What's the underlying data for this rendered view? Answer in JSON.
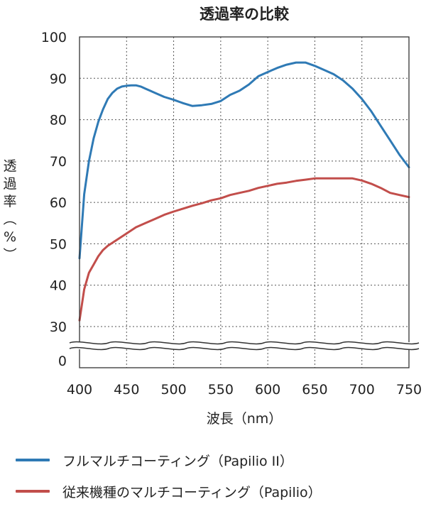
{
  "chart_data": {
    "type": "line",
    "title": "透過率の比較",
    "xlabel": "波長（nm）",
    "ylabel": "透過率（%）",
    "xlim": [
      400,
      750
    ],
    "ylim": [
      30,
      100
    ],
    "axis_break": true,
    "x_ticks": [
      400,
      450,
      500,
      550,
      600,
      650,
      700,
      750
    ],
    "y_ticks": [
      100,
      90,
      80,
      70,
      60,
      50,
      40,
      30
    ],
    "y_below_break_tick": 0,
    "grid": true,
    "legend_position": "bottom",
    "series": [
      {
        "name": "フルマルチコーティング（Papilio II）",
        "color": "#2f7ab5",
        "x": [
          400,
          405,
          410,
          415,
          420,
          425,
          430,
          435,
          440,
          445,
          450,
          455,
          460,
          465,
          470,
          475,
          480,
          490,
          500,
          510,
          520,
          530,
          540,
          550,
          560,
          570,
          580,
          590,
          600,
          610,
          620,
          630,
          640,
          650,
          660,
          670,
          680,
          690,
          700,
          710,
          720,
          730,
          740,
          750
        ],
        "y": [
          46.5,
          62,
          70,
          75.5,
          79.5,
          82.5,
          85,
          86.5,
          87.5,
          88,
          88.2,
          88.3,
          88.3,
          88,
          87.5,
          87,
          86.5,
          85.5,
          84.8,
          84,
          83.3,
          83.5,
          83.8,
          84.5,
          86,
          87,
          88.5,
          90.5,
          91.5,
          92.5,
          93.3,
          93.8,
          93.8,
          93,
          92,
          91,
          89.5,
          87.5,
          85,
          82,
          78.5,
          75,
          71.5,
          68.5
        ]
      },
      {
        "name": "従来機種のマルチコーティング（Papilio）",
        "color": "#c24e4b",
        "x": [
          400,
          405,
          410,
          415,
          420,
          425,
          430,
          440,
          450,
          460,
          470,
          480,
          490,
          500,
          510,
          520,
          530,
          540,
          550,
          560,
          570,
          580,
          590,
          600,
          610,
          620,
          630,
          640,
          650,
          660,
          670,
          680,
          690,
          700,
          710,
          720,
          730,
          740,
          750
        ],
        "y": [
          31.5,
          39,
          43,
          45,
          47,
          48.5,
          49.5,
          51,
          52.5,
          54,
          55,
          56,
          57,
          57.8,
          58.5,
          59.2,
          59.8,
          60.5,
          61,
          61.8,
          62.3,
          62.8,
          63.5,
          64,
          64.5,
          64.8,
          65.2,
          65.5,
          65.8,
          65.8,
          65.8,
          65.8,
          65.8,
          65.3,
          64.5,
          63.5,
          62.3,
          61.8,
          61.3
        ]
      }
    ]
  }
}
